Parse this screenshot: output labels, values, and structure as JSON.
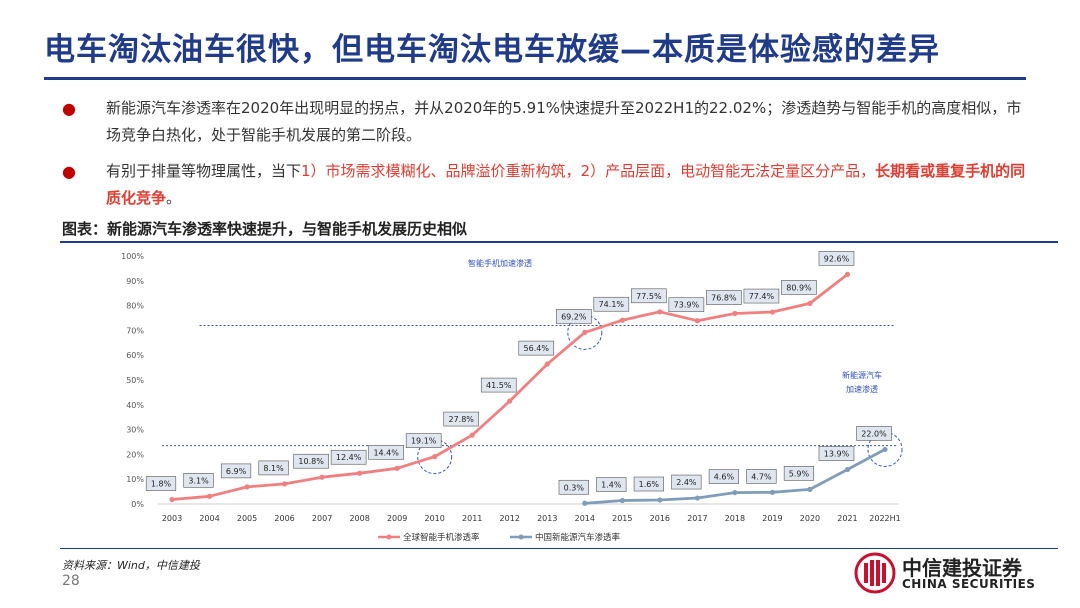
{
  "header": {
    "title": "电车淘汰油车很快，但电车淘汰电车放缓—本质是体验感的差异"
  },
  "bullets": [
    {
      "text": "新能源汽车渗透率在2020年出现明显的拐点，并从2020年的5.91%快速提升至2022H1的22.02%；渗透趋势与智能手机的高度相似，市场竞争白热化，处于智能手机发展的第二阶段。"
    },
    {
      "text_pre": "有别于排量等物理属性，当下",
      "text_red": "1）市场需求模糊化、品牌溢价重新构筑，2）产品层面，电动智能无法定量区分产品，",
      "text_red_bold": "长期看或重复手机的同质化竞争",
      "text_post": "。"
    }
  ],
  "figure": {
    "title": "图表：新能源汽车渗透率快速提升，与智能手机发展历史相似"
  },
  "chart_data": {
    "type": "line",
    "x": [
      "2003",
      "2004",
      "2005",
      "2006",
      "2007",
      "2008",
      "2009",
      "2010",
      "2011",
      "2012",
      "2013",
      "2014",
      "2015",
      "2016",
      "2017",
      "2018",
      "2019",
      "2020",
      "2021",
      "2022H1"
    ],
    "ylim": [
      0,
      100
    ],
    "yticks": [
      "0%",
      "10%",
      "20%",
      "30%",
      "40%",
      "50%",
      "60%",
      "70%",
      "80%",
      "90%",
      "100%"
    ],
    "series": [
      {
        "name": "全球智能手机渗透率",
        "color": "#f08080",
        "values": [
          1.8,
          3.1,
          6.9,
          8.1,
          10.8,
          12.4,
          14.4,
          19.1,
          27.8,
          41.5,
          56.4,
          69.2,
          74.1,
          77.5,
          73.9,
          76.8,
          77.4,
          80.9,
          92.6,
          null
        ],
        "labels": [
          "1.8%",
          "3.1%",
          "6.9%",
          "8.1%",
          "10.8%",
          "12.4%",
          "14.4%",
          "19.1%",
          "27.8%",
          "41.5%",
          "56.4%",
          "69.2%",
          "74.1%",
          "77.5%",
          "73.9%",
          "76.8%",
          "77.4%",
          "80.9%",
          "92.6%",
          ""
        ]
      },
      {
        "name": "中国新能源汽车渗透率",
        "color": "#7f9db9",
        "values": [
          null,
          null,
          null,
          null,
          null,
          null,
          null,
          null,
          null,
          null,
          null,
          0.3,
          1.4,
          1.6,
          2.4,
          4.6,
          4.7,
          5.9,
          13.9,
          22.0
        ],
        "labels": [
          "",
          "",
          "",
          "",
          "",
          "",
          "",
          "",
          "",
          "",
          "",
          "0.3%",
          "1.4%",
          "1.6%",
          "2.4%",
          "4.6%",
          "4.7%",
          "5.9%",
          "13.9%",
          "22.0%"
        ]
      }
    ],
    "reference_lines": [
      72,
      23.5
    ],
    "annotations": [
      {
        "text": "智能手机加速渗透"
      },
      {
        "text": "新能源汽车"
      },
      {
        "text": "加速渗透"
      }
    ],
    "grid": false,
    "legend": "bottom"
  },
  "footer": {
    "source": "资料来源：Wind，中信建投",
    "page": "28",
    "logo_cn": "中信建投证券",
    "logo_en": "CHINA SECURITIES"
  }
}
